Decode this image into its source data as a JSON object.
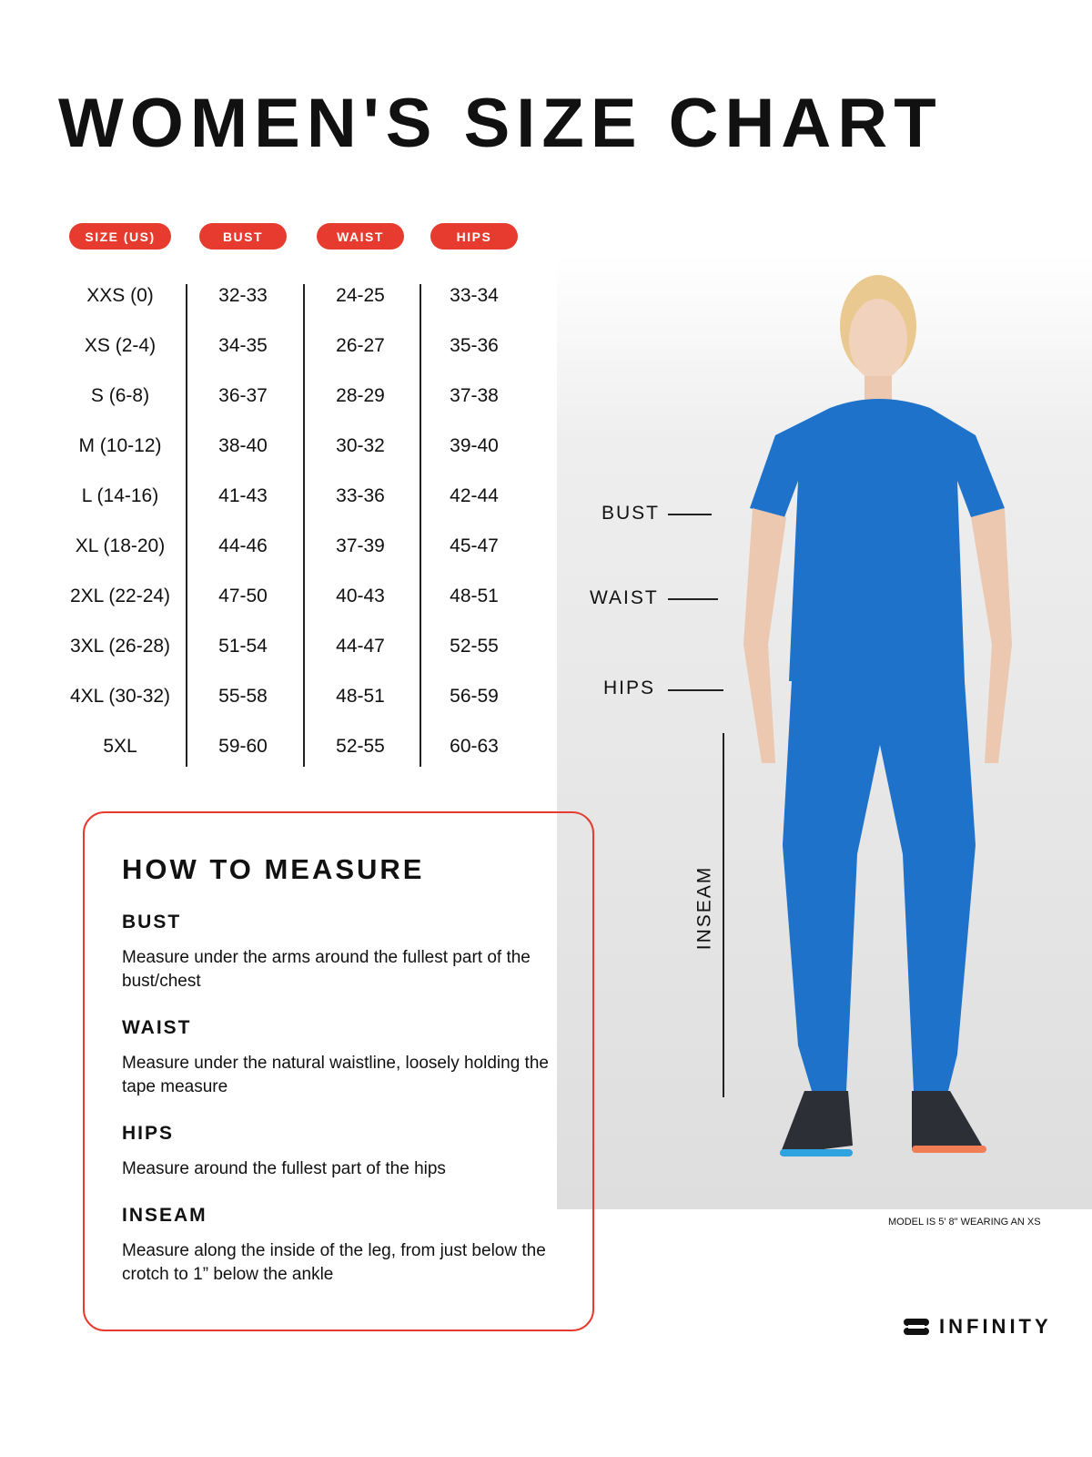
{
  "title": "WOMEN'S SIZE CHART",
  "headers": [
    "SIZE (US)",
    "BUST",
    "WAIST",
    "HIPS"
  ],
  "rows": [
    [
      "XXS (0)",
      "32-33",
      "24-25",
      "33-34"
    ],
    [
      "XS (2-4)",
      "34-35",
      "26-27",
      "35-36"
    ],
    [
      "S (6-8)",
      "36-37",
      "28-29",
      "37-38"
    ],
    [
      "M (10-12)",
      "38-40",
      "30-32",
      "39-40"
    ],
    [
      "L (14-16)",
      "41-43",
      "33-36",
      "42-44"
    ],
    [
      "XL (18-20)",
      "44-46",
      "37-39",
      "45-47"
    ],
    [
      "2XL (22-24)",
      "47-50",
      "40-43",
      "48-51"
    ],
    [
      "3XL (26-28)",
      "51-54",
      "44-47",
      "52-55"
    ],
    [
      "4XL (30-32)",
      "55-58",
      "48-51",
      "56-59"
    ],
    [
      "5XL",
      "59-60",
      "52-55",
      "60-63"
    ]
  ],
  "model_labels": {
    "bust": "BUST",
    "waist": "WAIST",
    "hips": "HIPS",
    "inseam": "INSEAM"
  },
  "model_note": "MODEL IS 5' 8\" WEARING AN XS",
  "how_to": {
    "title": "HOW TO MEASURE",
    "sections": [
      {
        "heading": "BUST",
        "text": "Measure under the arms around the fullest part of the bust/chest"
      },
      {
        "heading": "WAIST",
        "text": "Measure under the natural waistline, loosely holding the tape measure"
      },
      {
        "heading": "HIPS",
        "text": "Measure around the fullest part of the hips"
      },
      {
        "heading": "INSEAM",
        "text": "Measure along the inside of the leg, from just below the crotch to 1” below the ankle"
      }
    ]
  },
  "brand": "INFINITY",
  "colors": {
    "accent": "#e63b2e",
    "scrubs": "#1f72c9"
  }
}
